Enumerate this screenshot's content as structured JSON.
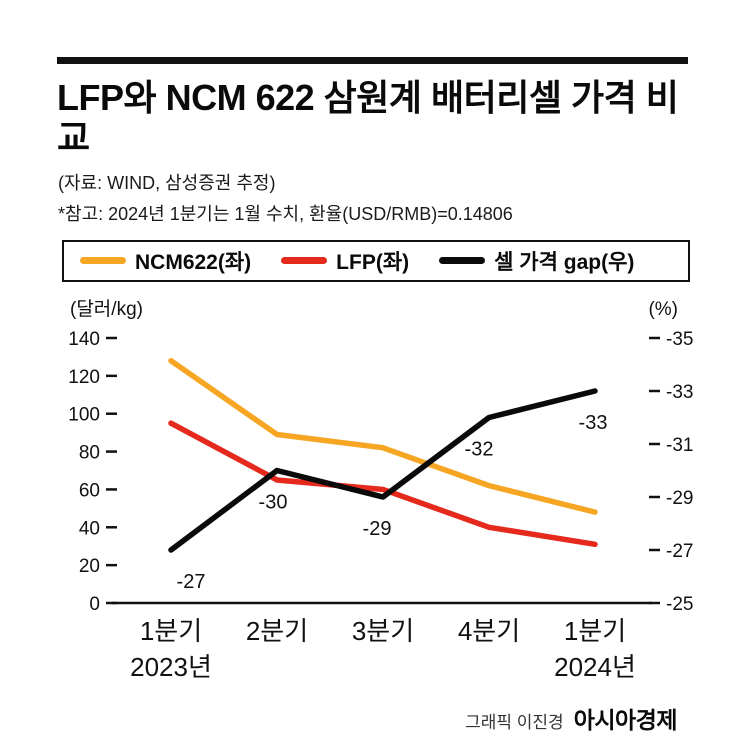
{
  "header": {
    "title": "LFP와 NCM 622 삼원계 배터리셀 가격 비교",
    "source": "(자료: WIND, 삼성증권 추정)",
    "note": "*참고: 2024년 1분기는 1월 수치, 환율(USD/RMB)=0.14806"
  },
  "colors": {
    "ncm622": "#F6A623",
    "lfp": "#E5291D",
    "gap": "#0a0a0a",
    "accent_red": "#E5251C"
  },
  "legend": [
    {
      "label": "NCM622(좌)",
      "color": "#F6A623"
    },
    {
      "label": "LFP(좌)",
      "color": "#E5291D"
    },
    {
      "label": "셀 가격 gap(우)",
      "color": "#0a0a0a"
    }
  ],
  "chart_data": {
    "type": "line",
    "title": "LFP와 NCM 622 삼원계 배터리셀 가격 비교",
    "categories": [
      "1분기",
      "2분기",
      "3분기",
      "4분기",
      "1분기"
    ],
    "x_year_labels": [
      {
        "index": 0,
        "label": "2023년"
      },
      {
        "index": 4,
        "label": "2024년"
      }
    ],
    "left_axis": {
      "unit": "(달러/kg)",
      "ticks": [
        140,
        120,
        100,
        80,
        60,
        40,
        20,
        0
      ],
      "range": [
        0,
        140
      ]
    },
    "right_axis": {
      "unit": "(%)",
      "ticks": [
        -35,
        -33,
        -31,
        -29,
        -27,
        -25
      ],
      "range": [
        -25,
        -35
      ]
    },
    "grid": false,
    "legend_position": "top",
    "series": [
      {
        "name": "NCM622(좌)",
        "axis": "left",
        "color": "#F6A623",
        "values": [
          128,
          89,
          82,
          62,
          48
        ]
      },
      {
        "name": "LFP(좌)",
        "axis": "left",
        "color": "#E5291D",
        "values": [
          95,
          65,
          60,
          40,
          31
        ]
      },
      {
        "name": "셀 가격 gap(우)",
        "axis": "right",
        "color": "#0a0a0a",
        "values": [
          -27,
          -30,
          -29,
          -32,
          -33
        ],
        "point_labels": [
          "-27",
          "-30",
          "-29",
          "-32",
          "-33"
        ]
      }
    ]
  },
  "footer": {
    "credit": "그래픽 이진경",
    "brand": "아시아경제"
  }
}
